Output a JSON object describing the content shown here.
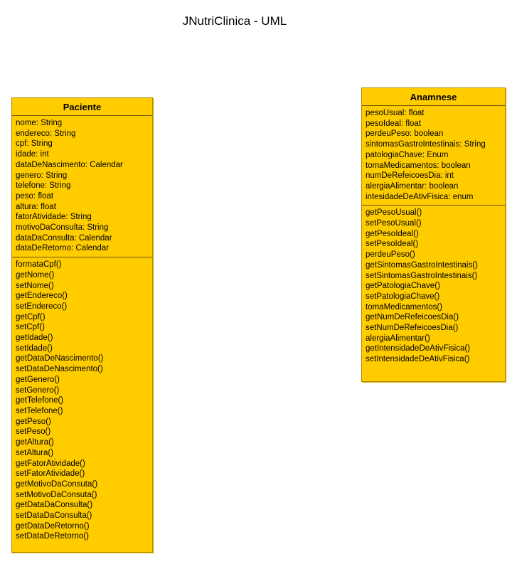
{
  "diagram": {
    "title": "JNutriClinica - UML"
  },
  "classes": [
    {
      "name": "Paciente",
      "attributes": [
        "nome: String",
        "endereco: String",
        "cpf: String",
        "idade: int",
        "dataDeNascimento: Calendar",
        "genero: String",
        "telefone: String",
        "peso: float",
        "altura: float",
        "fatorAtividade: String",
        "motivoDaConsulta: String",
        "dataDaConsulta: Calendar",
        "dataDeRetorno: Calendar"
      ],
      "methods": [
        "formataCpf()",
        "getNome()",
        "setNome()",
        "getEndereco()",
        "setEndereco()",
        "getCpf()",
        "setCpf()",
        "getIdade()",
        "setIdade()",
        "getDataDeNascimento()",
        "setDataDeNascimento()",
        "getGenero()",
        "setGenero()",
        "getTelefone()",
        "setTelefone()",
        "getPeso()",
        "setPeso()",
        "getAltura()",
        "setAltura()",
        "getFatorAtividade()",
        "setFatorAtividade()",
        "getMotivoDaConsuta()",
        "setMotivoDaConsuta()",
        "getDataDaConsulta()",
        "setDataDaConsulta()",
        "getDataDeRetorno()",
        "setDataDeRetorno()"
      ]
    },
    {
      "name": "Anamnese",
      "attributes": [
        "pesoUsual: float",
        "pesoIdeal: float",
        "perdeuPeso: boolean",
        "sintomasGastroIntestinais: String",
        "patologiaChave: Enum",
        "tomaMedicamentos: boolean",
        "numDeRefeicoesDia: int",
        "alergiaAlimentar: boolean",
        "intesidadeDeAtivFisica: enum"
      ],
      "methods": [
        "getPesoUsual()",
        "setPesoUsual()",
        "getPesoIdeal()",
        "setPesoIdeal()",
        "perdeuPeso()",
        "getSintomasGastroIntestinais()",
        "setSintomasGastroIntestinais()",
        "getPatologiaChave()",
        "setPatologiaChave()",
        "tomaMedicamentos()",
        "getNumDeRefeicoesDia()",
        "setNumDeRefeicoesDia()",
        "alergiaAlimentar()",
        "getIntensidadeDeAtivFisica()",
        "setIntensidadeDeAtivFisica()"
      ]
    }
  ]
}
